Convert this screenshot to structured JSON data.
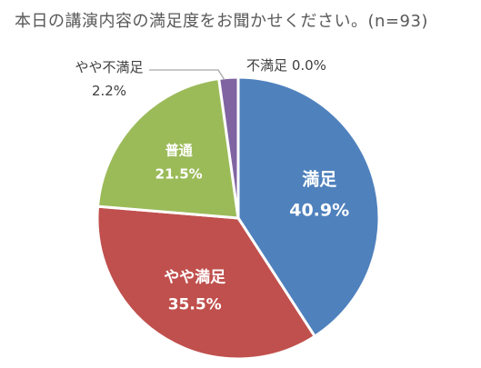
{
  "chart_data": {
    "type": "pie",
    "title": "本日の講演内容の満足度をお聞かせください。(n=93)",
    "start_angle_deg": 0,
    "direction": "clockwise",
    "slices": [
      {
        "label": "満足",
        "value": 40.9,
        "display": "40.9%",
        "color": "#4f81bd",
        "label_inside": true
      },
      {
        "label": "やや満足",
        "value": 35.5,
        "display": "35.5%",
        "color": "#c0504d",
        "label_inside": true
      },
      {
        "label": "普通",
        "value": 21.5,
        "display": "21.5%",
        "color": "#9bbb59",
        "label_inside": true
      },
      {
        "label": "やや不満足",
        "value": 2.2,
        "display": "2.2%",
        "color": "#8064a2",
        "label_inside": false
      },
      {
        "label": "不満足",
        "value": 0.0,
        "display": "0.0%",
        "color": "#f79646",
        "label_inside": false
      }
    ],
    "slice_border_color": "#ffffff",
    "outside_label_color": "#404040",
    "leader_line_color": "#a6a6a6"
  }
}
